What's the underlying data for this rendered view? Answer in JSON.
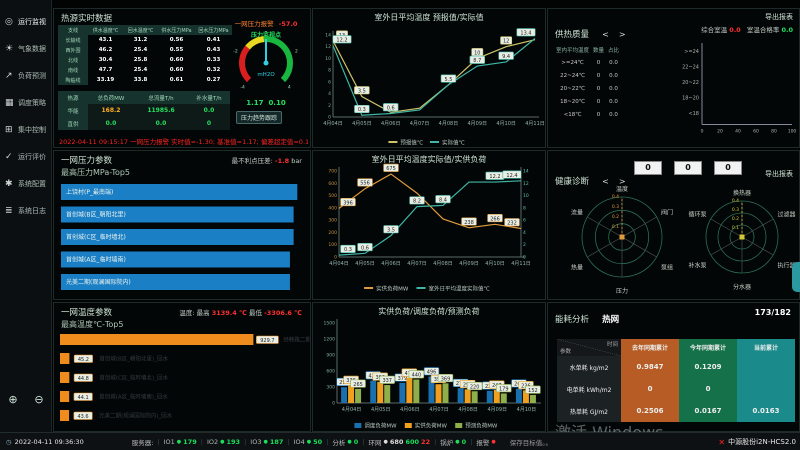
{
  "sidebar": {
    "items": [
      {
        "label": "运行监视",
        "icon": "monitor-icon",
        "glyph": "◎",
        "selected": true
      },
      {
        "label": "气象数据",
        "icon": "weather-icon",
        "glyph": "☀",
        "selected": false
      },
      {
        "label": "负荷预测",
        "icon": "forecast-icon",
        "glyph": "↗",
        "selected": false
      },
      {
        "label": "调度策略",
        "icon": "strategy-icon",
        "glyph": "▦",
        "selected": false
      },
      {
        "label": "集中控制",
        "icon": "control-icon",
        "glyph": "⊞",
        "selected": false
      },
      {
        "label": "运行评价",
        "icon": "evaluate-icon",
        "glyph": "✓",
        "selected": false
      },
      {
        "label": "系统配置",
        "icon": "config-icon",
        "glyph": "✱",
        "selected": false
      },
      {
        "label": "系统日志",
        "icon": "log-icon",
        "glyph": "≣",
        "selected": false
      }
    ],
    "bottom_icons": [
      {
        "name": "globe-icon",
        "glyph": "⊕"
      },
      {
        "name": "collapse-icon",
        "glyph": "⊖"
      }
    ]
  },
  "panels": {
    "realtime": {
      "title": "热源实时数据",
      "branch_table": {
        "headers": [
          "支线",
          "供水温度℃",
          "回水温度℃",
          "供水压力MPa",
          "回水压力MPa"
        ],
        "rows": [
          [
            "长输线",
            "43.1",
            "31.2",
            "0.56",
            "0.41"
          ],
          [
            "西外围",
            "46.2",
            "25.4",
            "0.55",
            "0.43"
          ],
          [
            "北线",
            "30.4",
            "25.8",
            "0.60",
            "0.33"
          ],
          [
            "南线",
            "47.7",
            "25.4",
            "0.60",
            "0.32"
          ],
          [
            "陶临线",
            "33.19",
            "33.8",
            "0.61",
            "0.27"
          ]
        ]
      },
      "source_table": {
        "headers": [
          "热源",
          "总负荷MW",
          "总流量T/h",
          "补水量T/h"
        ],
        "rows": [
          {
            "cells": [
              "华能",
              "168.2",
              "11985.6",
              "0.0"
            ],
            "colors": [
              "hd",
              "orange",
              "green",
              "green"
            ]
          },
          {
            "cells": [
              "直供",
              "0.0",
              "0.0",
              "0"
            ],
            "colors": [
              "hd",
              "green",
              "green",
              "green"
            ]
          }
        ]
      },
      "alarm_text": "2022-04-11 09:15:17  一网压力报警 实时值=-1.30; 基准值=1.17; 偏差超定值=0.100"
    },
    "gauge": {
      "alarm_label": "一网压力报警",
      "alarm_value": "-57.0",
      "point_label": "压力监视点",
      "unit": "mH2O",
      "baseline": "1.17",
      "deviation": "0.10",
      "button": "压力趋势跟踪"
    },
    "quality": {
      "title": "供热质量",
      "export": "导出报表",
      "metric1_label": "综合室温",
      "metric1_value": "0.0",
      "metric2_label": "室温合格率",
      "metric2_value": "0.0",
      "table": {
        "headers": [
          "室内平均温度",
          "数量",
          "占比"
        ],
        "rows": [
          [
            ">=24℃",
            "0",
            "0.0"
          ],
          [
            "22~24℃",
            "0",
            "0.0"
          ],
          [
            "20~22℃",
            "0",
            "0.0"
          ],
          [
            "18~20℃",
            "0",
            "0.0"
          ],
          [
            "<18℃",
            "0",
            "0.0"
          ]
        ]
      }
    },
    "pressure": {
      "title": "一网压力参数",
      "stat_label": "最不利点压差:",
      "stat_value": "-1.8",
      "stat_unit": "bar"
    },
    "temperature": {
      "title": "一网温度参数",
      "stat_prefix": "温度: 最高",
      "stat_v1": "3139.4 ℃",
      "stat_mid": "最低",
      "stat_v2": "-3306.6 ℃"
    },
    "health": {
      "title": "健康诊断",
      "export": "导出报表",
      "boxes": [
        "0",
        "0",
        "0"
      ]
    },
    "energy": {
      "title": "能耗分析",
      "badge": "热网",
      "counter": "173/182",
      "corner_top": "时间",
      "corner_bottom": "参数",
      "columns": [
        "去年同期累计",
        "今年同期累计",
        "当前累计"
      ],
      "rows": [
        {
          "name": "水单耗",
          "unit": "kg/m2",
          "values": [
            "0.9847",
            "0.1209",
            ""
          ]
        },
        {
          "name": "电单耗",
          "unit": "kWh/m2",
          "values": [
            "0",
            "0",
            ""
          ]
        },
        {
          "name": "热单耗",
          "unit": "GJ/m2",
          "values": [
            "0.2506",
            "0.0167",
            "0.0163"
          ]
        }
      ]
    }
  },
  "chart_data": [
    {
      "id": "forecast",
      "type": "line",
      "title": "室外日平均温度 预报值/实际值",
      "x": [
        "4月04日",
        "4月05日",
        "4月06日",
        "4月07日",
        "4月08日",
        "4月09日",
        "4月10日",
        "4月11日"
      ],
      "ylim": [
        0,
        14
      ],
      "yticks": [
        0,
        2,
        4,
        6,
        8,
        10,
        12,
        14
      ],
      "legend_position": "bottom",
      "grid": false,
      "series": [
        {
          "name": "预报值℃",
          "color": "#cfc36a",
          "values": [
            13,
            3.5,
            0.8,
            1.5,
            5.5,
            10,
            12,
            13.2
          ],
          "labels": [
            13,
            3.5,
            null,
            null,
            null,
            10,
            12,
            null
          ]
        },
        {
          "name": "实际值℃",
          "color": "#3fb6a8",
          "values": [
            12.2,
            0.3,
            0.6,
            1.2,
            5.5,
            8.7,
            9.4,
            13.4
          ],
          "labels": [
            12.2,
            0.3,
            0.6,
            null,
            5.5,
            8.7,
            9.4,
            13.4
          ]
        }
      ]
    },
    {
      "id": "load_temp",
      "type": "line",
      "title": "室外日平均温度实际值/实供负荷",
      "x": [
        "4月04日",
        "4月05日",
        "4月06日",
        "4月07日",
        "4月08日",
        "4月09日",
        "4月10日",
        "4月11日"
      ],
      "ylim_left": [
        0,
        700
      ],
      "yticks_left": [
        0,
        100,
        200,
        300,
        400,
        500,
        600,
        700
      ],
      "ylim_right": [
        0,
        14
      ],
      "yticks_right": [
        0,
        2,
        4,
        6,
        8,
        10,
        12,
        14
      ],
      "legend_position": "bottom",
      "grid": false,
      "series": [
        {
          "name": "实供负荷MW",
          "axis": "left",
          "color": "#e09b3d",
          "values": [
            396,
            556,
            675,
            520,
            310,
            238,
            266,
            232
          ],
          "labels": [
            396,
            556,
            675,
            null,
            null,
            238,
            266,
            232
          ]
        },
        {
          "name": "室外日平均温度实际值℃",
          "axis": "right",
          "color": "#3fb6a8",
          "values": [
            0.3,
            0.6,
            3.5,
            8.2,
            8.4,
            12.2,
            12.2,
            12.4
          ],
          "labels": [
            0.3,
            0.6,
            3.5,
            8.2,
            8.4,
            null,
            12.2,
            12.4
          ]
        }
      ]
    },
    {
      "id": "loads",
      "type": "bar",
      "title": "实供负荷/调度负荷/预测负荷",
      "categories": [
        "4月04日",
        "4月05日",
        "4月06日",
        "4月07日",
        "4月08日",
        "4月09日",
        "4月10日"
      ],
      "ylim": [
        0,
        1500
      ],
      "yticks": [
        0,
        300,
        600,
        900,
        1200,
        1500
      ],
      "legend_position": "bottom",
      "series": [
        {
          "name": "调度负荷MW",
          "color": "#1a6fae",
          "values": [
            296,
            421,
            379,
            496,
            278,
            228,
            268
          ]
        },
        {
          "name": "实供负荷MW",
          "color": "#f0a01e",
          "values": [
            336,
            396,
            473,
            352,
            256,
            247,
            236
          ]
        },
        {
          "name": "预测负荷MW",
          "color": "#8faf4a",
          "values": [
            265,
            337,
            440,
            369,
            220,
            179,
            152
          ]
        }
      ]
    },
    {
      "id": "pressure_top5",
      "type": "hbar",
      "title": "最高压力MPa-Top5",
      "xlim": [
        0,
        0.65
      ],
      "color": "#1a7fc4",
      "categories": [
        "上饶村(P_最南端)",
        "首创城(B区_朝阳北里)",
        "首创城(C区_临时墙北)",
        "首创城(A区_临时墙南)",
        "光美二期(观澜国际院内)"
      ],
      "values": [
        0.64,
        0.63,
        0.63,
        0.62,
        0.62
      ]
    },
    {
      "id": "temp_top5",
      "type": "hbar",
      "title": "最高温度℃-Top5",
      "xlim": [
        0,
        1000
      ],
      "color": "#f08c1e",
      "categories": [
        "经韩路二期(家和花园东区)_回水",
        "首创城(B区_朝阳北里)_回水",
        "首创城(C区_临时墙北)_回水",
        "首创城(A区_临时墙南)_回水",
        "光美二期(观澜国际院内)_回水"
      ],
      "values": [
        929.7,
        45.2,
        44.8,
        44.1,
        43.6
      ]
    },
    {
      "id": "quality_dist",
      "type": "hbar",
      "title": "",
      "xlim": [
        0,
        100
      ],
      "xticks": [
        0,
        20,
        40,
        60,
        80,
        100
      ],
      "color": "#3fb6a8",
      "categories": [
        ">=24",
        "22~24",
        "20~22",
        "18~20",
        "<18"
      ],
      "values": [
        0,
        0,
        0,
        0,
        0
      ]
    },
    {
      "id": "health_network",
      "type": "radar",
      "axes": [
        "温度",
        "阀门",
        "泵组",
        "压力",
        "热量",
        "流量"
      ],
      "rticks": [
        0.1,
        0.2,
        0.3,
        0.4
      ],
      "accent": "#e09b3d",
      "values": [
        0,
        0,
        0,
        0,
        0,
        0
      ]
    },
    {
      "id": "health_equipment",
      "type": "radar",
      "axes": [
        "换热器",
        "过滤器",
        "执行器",
        "分水器",
        "补水泵",
        "循环泵"
      ],
      "rticks": [
        0.1,
        0.2,
        0.3,
        0.4
      ],
      "accent": "#d4c832",
      "values": [
        0,
        0,
        0,
        0,
        0,
        0
      ]
    },
    {
      "id": "pressure_gauge",
      "type": "gauge",
      "min": -4,
      "max": 4,
      "value": 0,
      "ticks": [
        -4,
        -2,
        0,
        2,
        4
      ],
      "unit": "mH2O"
    }
  ],
  "status_bar": {
    "datetime": "2022-04-11 09:36:30",
    "items": [
      {
        "label": "服务器:"
      },
      {
        "label": "IO1",
        "value": "179",
        "color": "green"
      },
      {
        "label": "IO2",
        "value": "193",
        "color": "green"
      },
      {
        "label": "IO3",
        "value": "187",
        "color": "green"
      },
      {
        "label": "IO4",
        "value": "50",
        "color": "green"
      },
      {
        "label": "分析",
        "value": "0",
        "color": "green"
      },
      {
        "label": "环网",
        "value": "680",
        "color": "white",
        "extra": [
          {
            "v": "600",
            "c": "green"
          },
          {
            "v": "22",
            "c": "red"
          }
        ]
      },
      {
        "label": "锅炉",
        "value": "0",
        "color": "green"
      },
      {
        "label": "报警",
        "value": "",
        "color": "red"
      }
    ],
    "right_text": "保存目标值。。"
  },
  "watermark": "激活 Windows",
  "brand": "中源股份i2N-HCS2.0"
}
